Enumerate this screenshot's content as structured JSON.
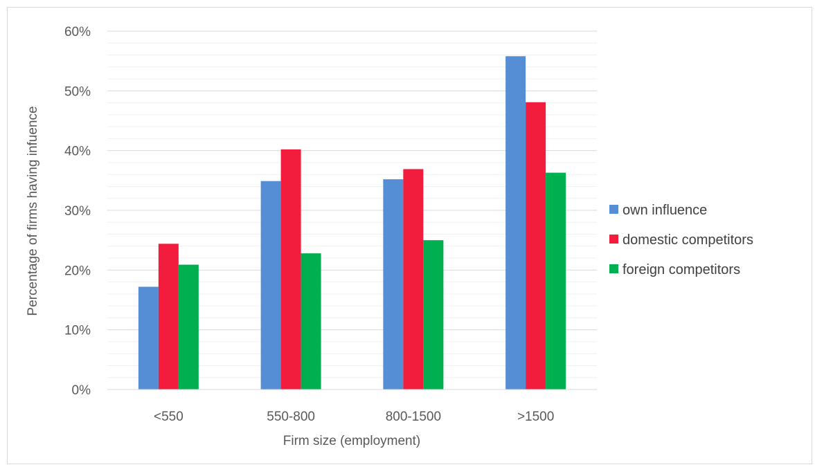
{
  "chart_data": {
    "type": "bar",
    "title": "",
    "xlabel": "Firm size (employment)",
    "ylabel": "Percentage of firms having infuence",
    "categories": [
      "<550",
      "550-800",
      "800-1500",
      ">1500"
    ],
    "series": [
      {
        "name": "own influence",
        "values": [
          17.2,
          34.9,
          35.2,
          55.8
        ],
        "color": "#558ed5"
      },
      {
        "name": "domestic competitors",
        "values": [
          24.4,
          40.2,
          36.9,
          48.1
        ],
        "color": "#f21c3c"
      },
      {
        "name": "foreign competitors",
        "values": [
          20.9,
          22.8,
          25.0,
          36.3
        ],
        "color": "#00b050"
      }
    ],
    "ylim": [
      0,
      60
    ],
    "yticks": [
      0,
      10,
      20,
      30,
      40,
      50,
      60
    ],
    "ytick_labels": [
      "0%",
      "10%",
      "20%",
      "30%",
      "40%",
      "50%",
      "60%"
    ],
    "y_unit": "%",
    "grid": {
      "major": true,
      "minor": true
    },
    "legend_position": "right"
  }
}
